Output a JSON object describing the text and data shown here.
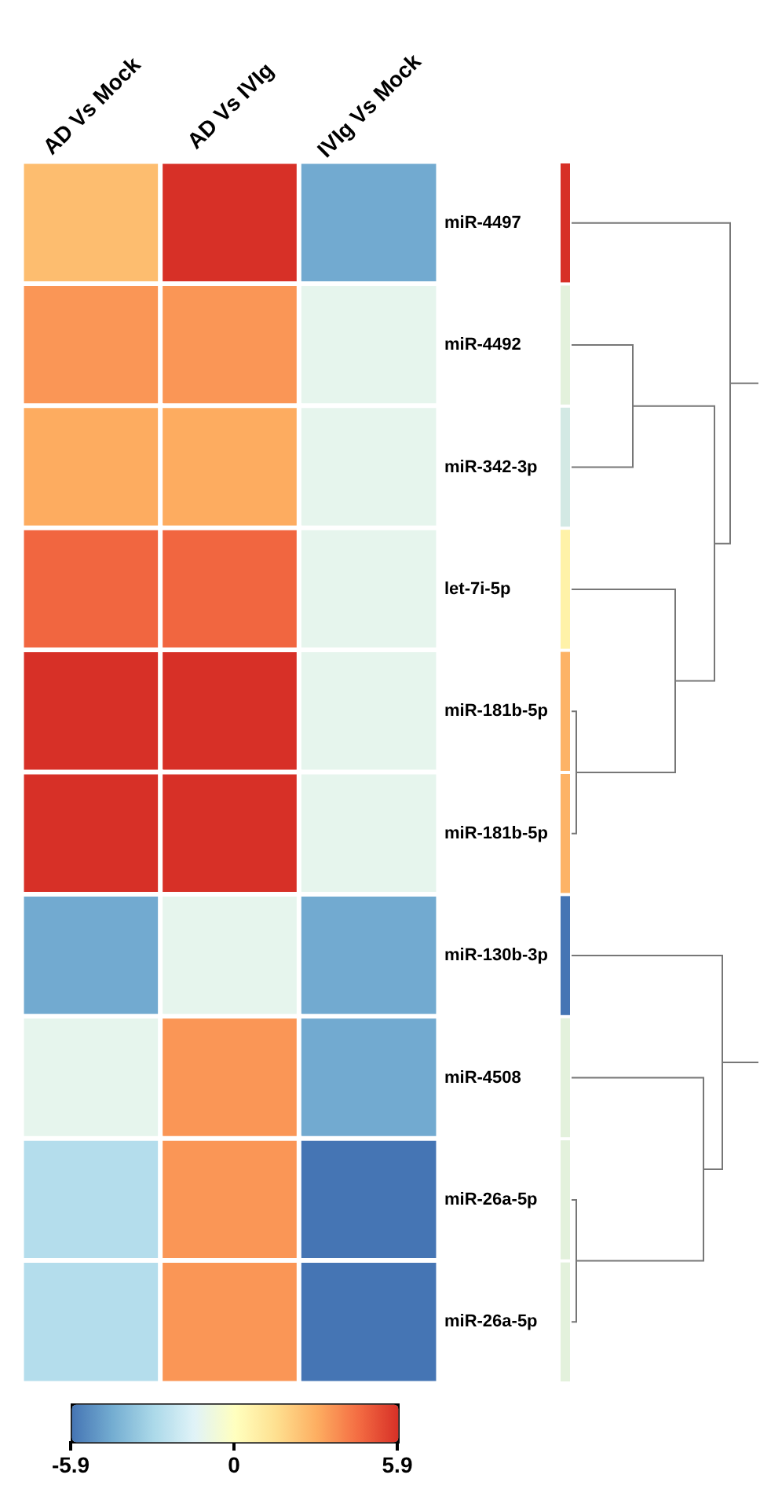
{
  "chart_data": {
    "type": "heatmap",
    "categories": [
      "AD Vs Mock",
      "AD Vs IVIg",
      "IVIg Vs Mock"
    ],
    "y_categories": [
      null,
      null,
      null,
      null,
      null,
      null,
      null,
      null,
      null,
      null
    ],
    "y2_categories": [
      "miR-4497",
      "miR-4492",
      "miR-342-3p",
      "let-7i-5p",
      "miR-181b-5p",
      "miR-181b-5p",
      "miR-130b-3p",
      "miR-4508",
      "miR-26a-5p",
      "miR-26a-5p"
    ],
    "cells": [
      [
        2.5,
        5.9,
        -4.5
      ],
      [
        3.5,
        3.5,
        -1.2
      ],
      [
        3.0,
        3.0,
        -1.2
      ],
      [
        4.6,
        4.6,
        -1.2
      ],
      [
        5.9,
        5.9,
        -1.2
      ],
      [
        5.9,
        5.9,
        -1.2
      ],
      [
        -4.5,
        -1.2,
        -4.5
      ],
      [
        -1.2,
        3.5,
        -4.5
      ],
      [
        -2.7,
        3.5,
        -5.9
      ],
      [
        -2.7,
        3.5,
        -5.9
      ]
    ],
    "clim": [
      -5.9,
      5.9
    ],
    "cticks": [
      -5.9,
      0,
      5.9
    ]
  }
}
